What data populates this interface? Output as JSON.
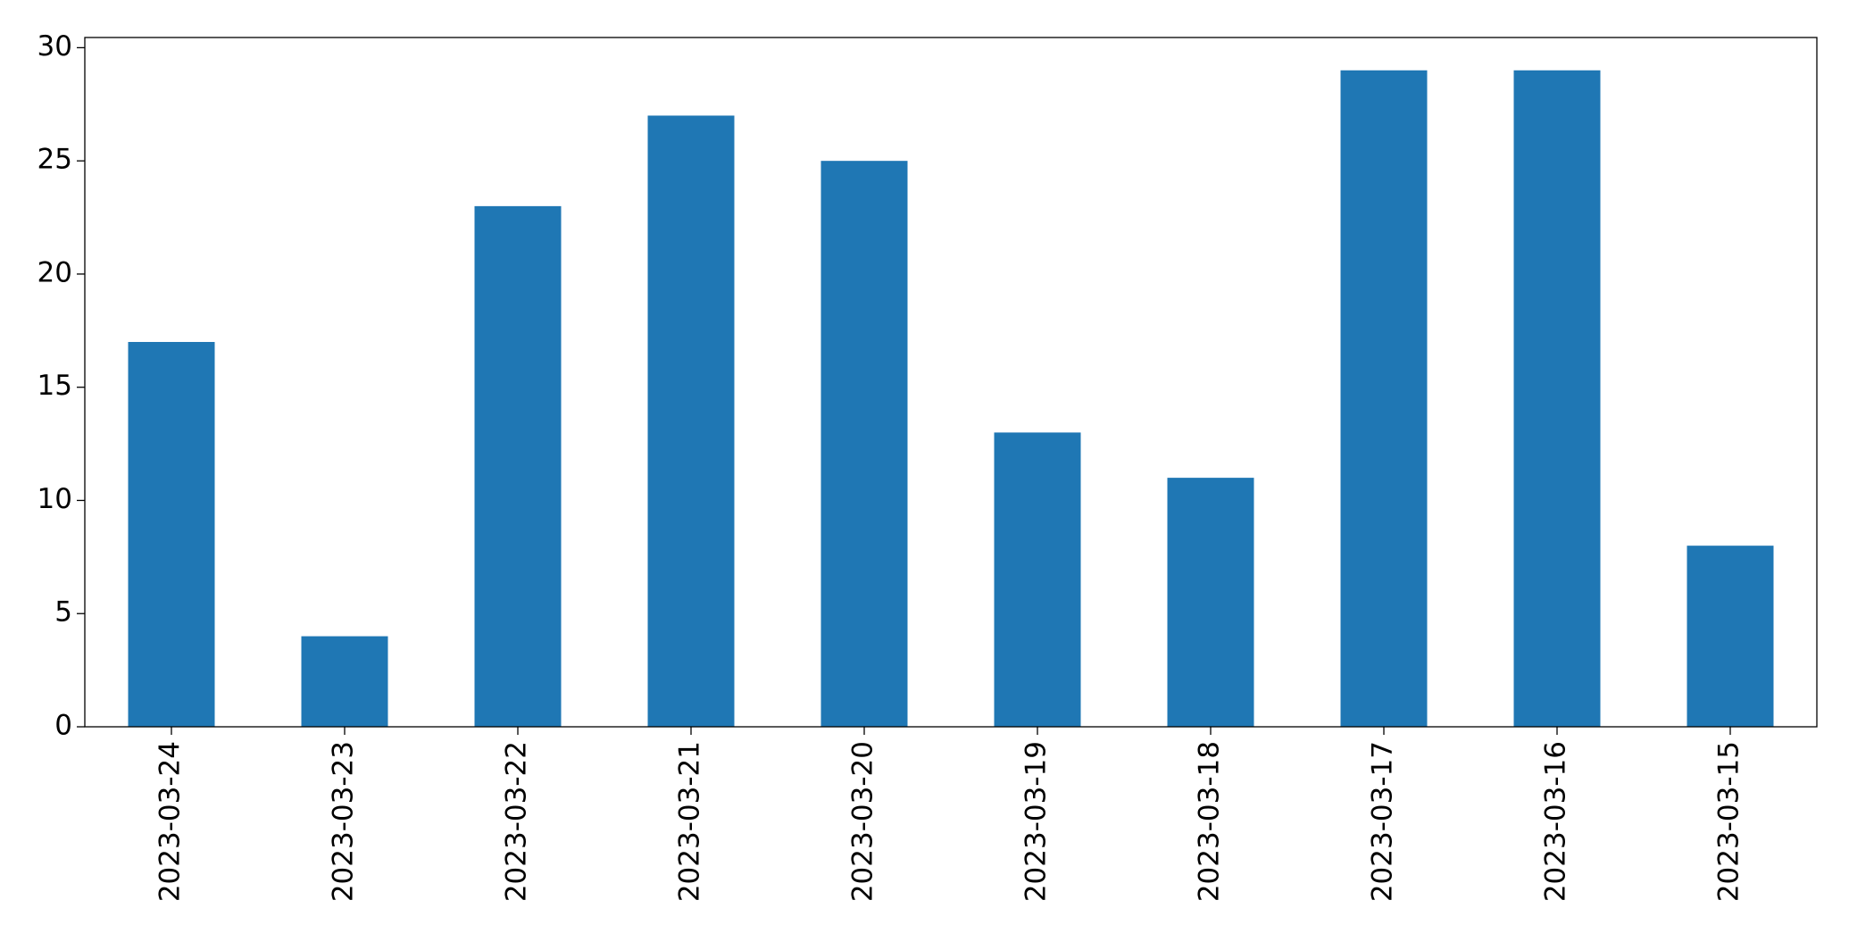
{
  "chart_data": {
    "type": "bar",
    "categories": [
      "2023-03-24",
      "2023-03-23",
      "2023-03-22",
      "2023-03-21",
      "2023-03-20",
      "2023-03-19",
      "2023-03-18",
      "2023-03-17",
      "2023-03-16",
      "2023-03-15"
    ],
    "values": [
      17,
      4,
      23,
      27,
      25,
      13,
      11,
      29,
      29,
      8
    ],
    "color": "#1f77b4",
    "ylim": [
      0,
      30.45
    ],
    "yticks": [
      0,
      5,
      10,
      15,
      20,
      25,
      30
    ],
    "grid": false
  }
}
